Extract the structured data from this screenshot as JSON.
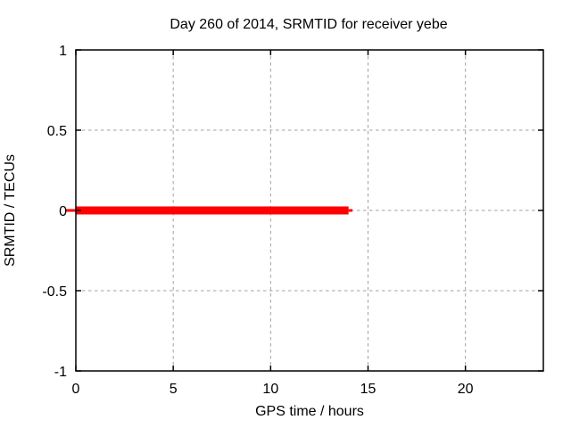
{
  "window": {
    "background": "#ffffff"
  },
  "chart_data": {
    "type": "line",
    "title": "Day 260 of 2014, SRMTID for receiver yebe",
    "xlabel": "GPS time / hours",
    "ylabel": "SRMTID / TECUs",
    "xlim": [
      0,
      24
    ],
    "ylim": [
      -1,
      1
    ],
    "grid": true,
    "grid_style": "dashed",
    "legend": "none",
    "x_ticks": [
      {
        "v": 0,
        "label": "0"
      },
      {
        "v": 5,
        "label": "5"
      },
      {
        "v": 10,
        "label": "10"
      },
      {
        "v": 15,
        "label": "15"
      },
      {
        "v": 20,
        "label": "20"
      }
    ],
    "y_ticks": [
      {
        "v": -1,
        "label": "-1"
      },
      {
        "v": -0.5,
        "label": "-0.5"
      },
      {
        "v": 0,
        "label": "0"
      },
      {
        "v": 0.5,
        "label": "0.5"
      },
      {
        "v": 1,
        "label": "1"
      }
    ],
    "series": [
      {
        "name": "SRMTID",
        "color": "#ff0000",
        "x": [
          0,
          14
        ],
        "y": [
          0,
          0
        ],
        "line_width": 9,
        "thin_tips": {
          "left_x": -0.55,
          "right_x": 14.2,
          "width": 3
        }
      }
    ],
    "colors": {
      "border": "#000000",
      "grid": "#a0a0a0",
      "text": "#000000",
      "series": "#ff0000",
      "background": "#ffffff"
    }
  }
}
